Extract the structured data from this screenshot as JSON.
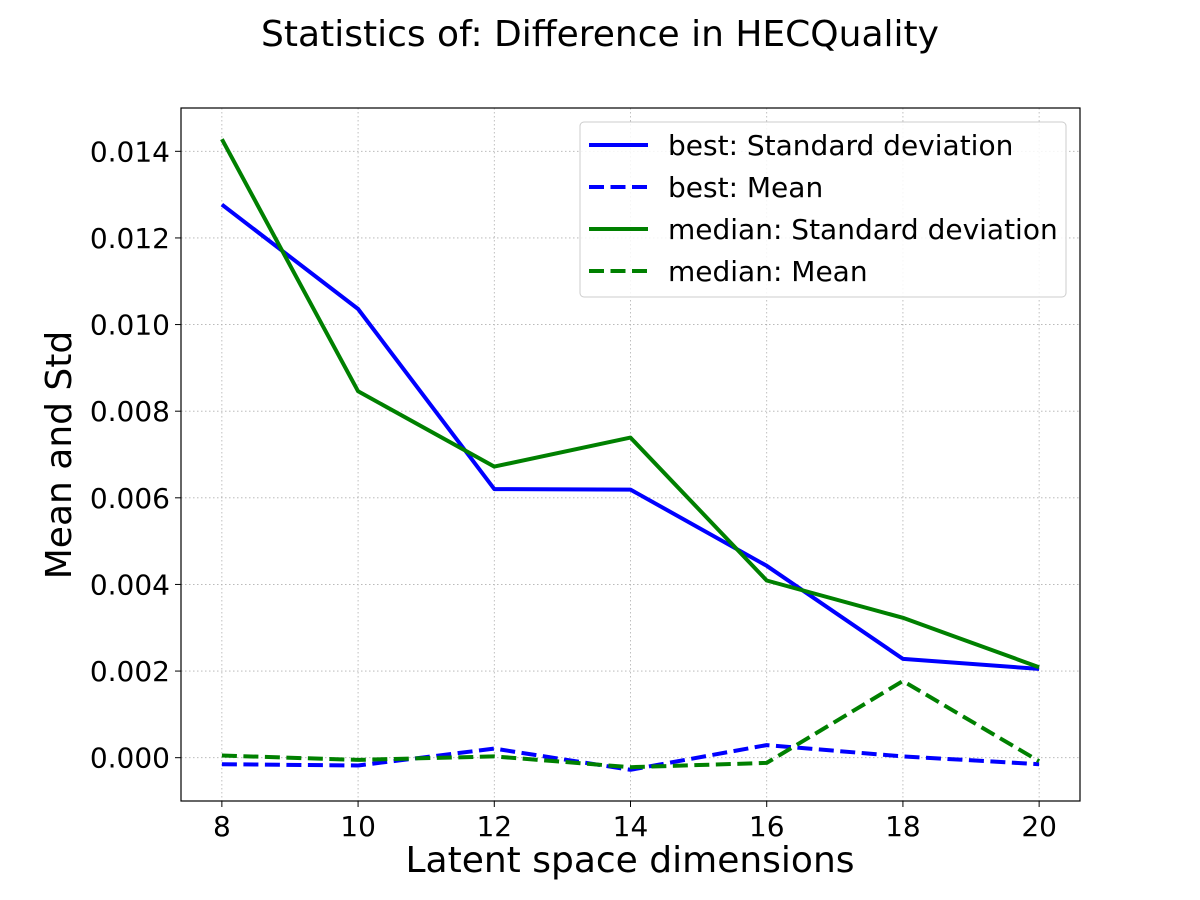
{
  "chart_data": {
    "type": "line",
    "title": "Statistics of: Difference in HECQuality",
    "xlabel": "Latent space dimensions",
    "ylabel": "Mean and Std",
    "x": [
      8,
      10,
      12,
      14,
      16,
      18,
      20
    ],
    "xlim": [
      7.4,
      20.6
    ],
    "ylim": [
      -0.001,
      0.015
    ],
    "x_ticks": [
      8,
      10,
      12,
      14,
      16,
      18,
      20
    ],
    "y_ticks": [
      0.0,
      0.002,
      0.004,
      0.006,
      0.008,
      0.01,
      0.012,
      0.014
    ],
    "y_tick_labels": [
      "0.000",
      "0.002",
      "0.004",
      "0.006",
      "0.008",
      "0.010",
      "0.012",
      "0.014"
    ],
    "grid": true,
    "legend_position": "top-right",
    "series": [
      {
        "name": "best: Standard deviation",
        "color": "#0000ff",
        "dash": "solid",
        "values": [
          0.01277,
          0.01036,
          0.0062,
          0.00619,
          0.00443,
          0.00228,
          0.00205
        ]
      },
      {
        "name": "best: Mean",
        "color": "#0000ff",
        "dash": "dashed",
        "values": [
          -0.00015,
          -0.00018,
          0.00021,
          -0.00028,
          0.00029,
          3e-05,
          -0.00015
        ]
      },
      {
        "name": "median: Standard deviation",
        "color": "#008000",
        "dash": "solid",
        "values": [
          0.01428,
          0.00846,
          0.00672,
          0.00739,
          0.00409,
          0.00323,
          0.00209
        ]
      },
      {
        "name": "median: Mean",
        "color": "#008000",
        "dash": "dashed",
        "values": [
          5e-05,
          -5e-05,
          3e-05,
          -0.00022,
          -0.00012,
          0.00177,
          -8e-05
        ]
      }
    ]
  }
}
